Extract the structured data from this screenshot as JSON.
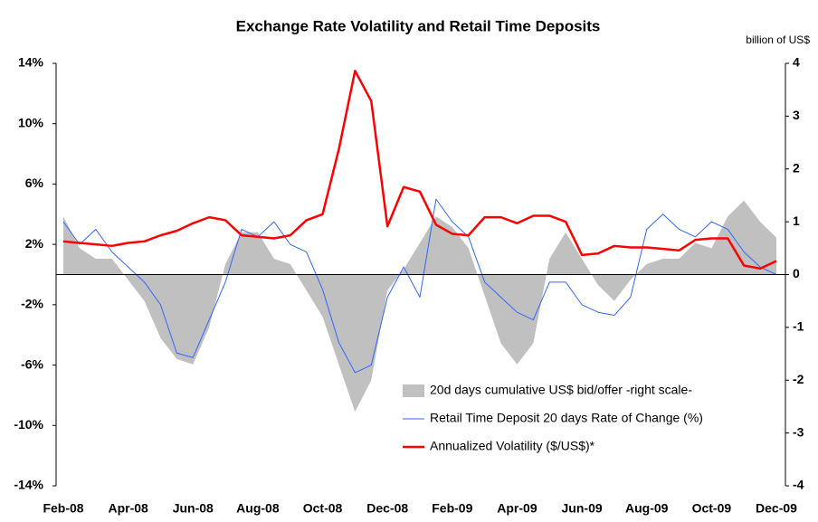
{
  "chart_data": {
    "type": "line",
    "title": "Exchange Rate Volatility and Retail Time Deposits",
    "y2_label": "billion of US$",
    "categories": [
      "Feb-08",
      null,
      null,
      null,
      "Apr-08",
      null,
      null,
      null,
      "Jun-08",
      null,
      null,
      null,
      "Aug-08",
      null,
      null,
      null,
      "Oct-08",
      null,
      null,
      null,
      "Dec-08",
      null,
      null,
      null,
      "Feb-09",
      null,
      null,
      null,
      "Apr-09",
      null,
      null,
      null,
      "Jun-09",
      null,
      null,
      null,
      "Aug-09",
      null,
      null,
      null,
      "Oct-09",
      null,
      null,
      null,
      "Dec-09"
    ],
    "ylim": [
      -14,
      14
    ],
    "yticks": [
      {
        "value": 14,
        "label": "14%"
      },
      {
        "value": 10,
        "label": "10%"
      },
      {
        "value": 6,
        "label": "6%"
      },
      {
        "value": 2,
        "label": "2%"
      },
      {
        "value": -2,
        "label": "-2%"
      },
      {
        "value": -6,
        "label": "-6%"
      },
      {
        "value": -10,
        "label": "-10%"
      },
      {
        "value": -14,
        "label": "-14%"
      }
    ],
    "y2lim": [
      -4,
      4
    ],
    "y2ticks": [
      4,
      3,
      2,
      1,
      0,
      -1,
      -2,
      -3,
      -4
    ],
    "legend_position": "lower right",
    "series": [
      {
        "name": "20d days cumulative US$ bid/offer -right scale-",
        "type": "area",
        "axis": "y2",
        "color": "#c0c0c0",
        "values": [
          1.1,
          0.5,
          0.3,
          0.3,
          -0.1,
          -0.5,
          -1.2,
          -1.6,
          -1.7,
          -1.0,
          0.2,
          0.8,
          0.8,
          0.3,
          0.2,
          -0.3,
          -0.8,
          -1.7,
          -2.6,
          -2.0,
          -0.3,
          0.1,
          0.6,
          1.1,
          0.9,
          0.5,
          -0.4,
          -1.3,
          -1.7,
          -1.3,
          0.3,
          0.8,
          0.3,
          -0.2,
          -0.5,
          -0.1,
          0.2,
          0.3,
          0.3,
          0.6,
          0.5,
          1.1,
          1.4,
          1.0,
          0.7
        ]
      },
      {
        "name": "Retail Time Deposit 20 days Rate of Change (%)",
        "type": "line",
        "color": "#3366ff",
        "values": [
          3.5,
          2.0,
          3.0,
          1.5,
          0.5,
          -0.5,
          -2.0,
          -5.2,
          -5.5,
          -3.0,
          -0.5,
          3.0,
          2.5,
          3.5,
          2.0,
          1.5,
          -1.0,
          -4.5,
          -6.5,
          -6.0,
          -1.5,
          0.5,
          -1.5,
          5.0,
          3.5,
          2.5,
          -0.5,
          -1.5,
          -2.5,
          -3.0,
          -0.5,
          -0.5,
          -2.0,
          -2.5,
          -2.7,
          -1.5,
          3.0,
          4.0,
          3.0,
          2.5,
          3.5,
          3.0,
          1.5,
          0.5,
          0.0
        ]
      },
      {
        "name": "Annualized Volatility ($/US$)*",
        "type": "line",
        "color": "#ff0000",
        "values": [
          2.2,
          2.1,
          2.0,
          1.9,
          2.1,
          2.2,
          2.6,
          2.9,
          3.4,
          3.8,
          3.6,
          2.6,
          2.5,
          2.4,
          2.6,
          3.6,
          4.0,
          8.3,
          13.5,
          11.5,
          3.2,
          5.8,
          5.5,
          3.3,
          2.7,
          2.6,
          3.8,
          3.8,
          3.4,
          3.9,
          3.9,
          3.5,
          1.3,
          1.4,
          1.9,
          1.8,
          1.8,
          1.7,
          1.6,
          2.3,
          2.4,
          2.4,
          0.6,
          0.4,
          0.9
        ]
      }
    ]
  }
}
